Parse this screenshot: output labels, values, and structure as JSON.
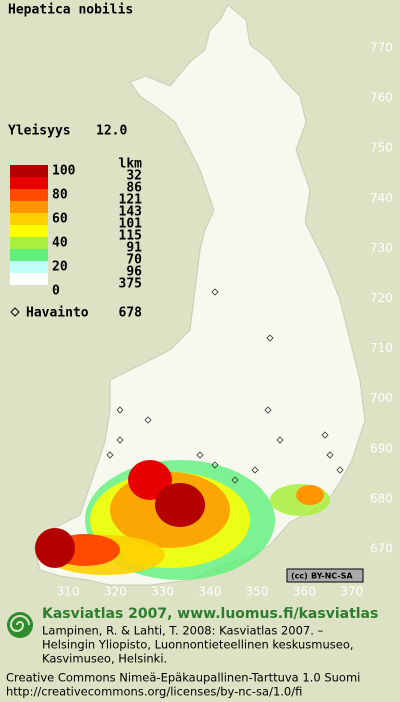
{
  "title": "Hepatica nobilis",
  "frequency": {
    "label": "Yleisyys",
    "value": "12.0"
  },
  "legend": {
    "scale_labels": [
      100,
      80,
      60,
      40,
      20,
      0
    ],
    "count_header": "lkm",
    "classes": [
      {
        "color": "#b40000",
        "count": 32
      },
      {
        "color": "#e60000",
        "count": 86
      },
      {
        "color": "#ff4a00",
        "count": 121
      },
      {
        "color": "#ff9600",
        "count": 143
      },
      {
        "color": "#ffd000",
        "count": 101
      },
      {
        "color": "#ffff00",
        "count": 115
      },
      {
        "color": "#a8f03c",
        "count": 91
      },
      {
        "color": "#5ef07a",
        "count": 70
      },
      {
        "color": "#c0fff8",
        "count": 96
      },
      {
        "color": "#ffffff",
        "count": 375
      }
    ],
    "observation_label": "Havainto",
    "observation_count": 678
  },
  "grid": {
    "yticks": [
      770,
      760,
      750,
      740,
      730,
      720,
      710,
      700,
      690,
      680,
      670
    ],
    "xticks": [
      310,
      320,
      330,
      340,
      350,
      360,
      370
    ]
  },
  "license_badge": "BY-NC-SA",
  "footer": {
    "heading": "Kasviatlas 2007, www.luomus.fi/kasviatlas",
    "citation": [
      "Lampinen, R. & Lahti, T. 2008: Kasviatlas 2007. –",
      "Helsingin Yliopisto, Luonnontieteellinen keskusmuseo,",
      "Kasvimuseo, Helsinki."
    ],
    "license": [
      "Creative Commons Nimeä-Epäkaupallinen-Tarttuva 1.0 Suomi",
      "http://creativecommons.org/licenses/by-nc-sa/1.0/fi"
    ]
  }
}
